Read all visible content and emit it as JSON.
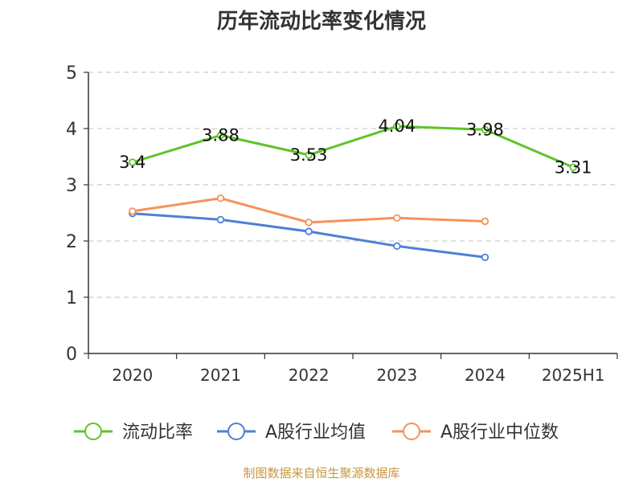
{
  "chart_data": {
    "type": "line",
    "title": "历年流动比率变化情况",
    "categories": [
      "2020",
      "2021",
      "2022",
      "2023",
      "2024",
      "2025H1"
    ],
    "ylim": [
      0,
      5
    ],
    "yticks": [
      0,
      1,
      2,
      3,
      4,
      5
    ],
    "grid": true,
    "legend_position": "bottom",
    "series": [
      {
        "name": "流动比率",
        "color": "#5ec42a",
        "values": [
          3.4,
          3.88,
          3.53,
          4.04,
          3.98,
          3.31
        ],
        "labels": [
          "3.4",
          "3.88",
          "3.53",
          "4.04",
          "3.98",
          "3.31"
        ],
        "show_labels": true
      },
      {
        "name": "A股行业均值",
        "color": "#4f7fd8",
        "values": [
          2.49,
          2.38,
          2.17,
          1.91,
          1.71,
          null
        ],
        "show_labels": false
      },
      {
        "name": "A股行业中位数",
        "color": "#f5925c",
        "values": [
          2.53,
          2.76,
          2.33,
          2.41,
          2.35,
          null
        ],
        "show_labels": false
      }
    ]
  },
  "footer": {
    "source": "制图数据来自恒生聚源数据库"
  }
}
